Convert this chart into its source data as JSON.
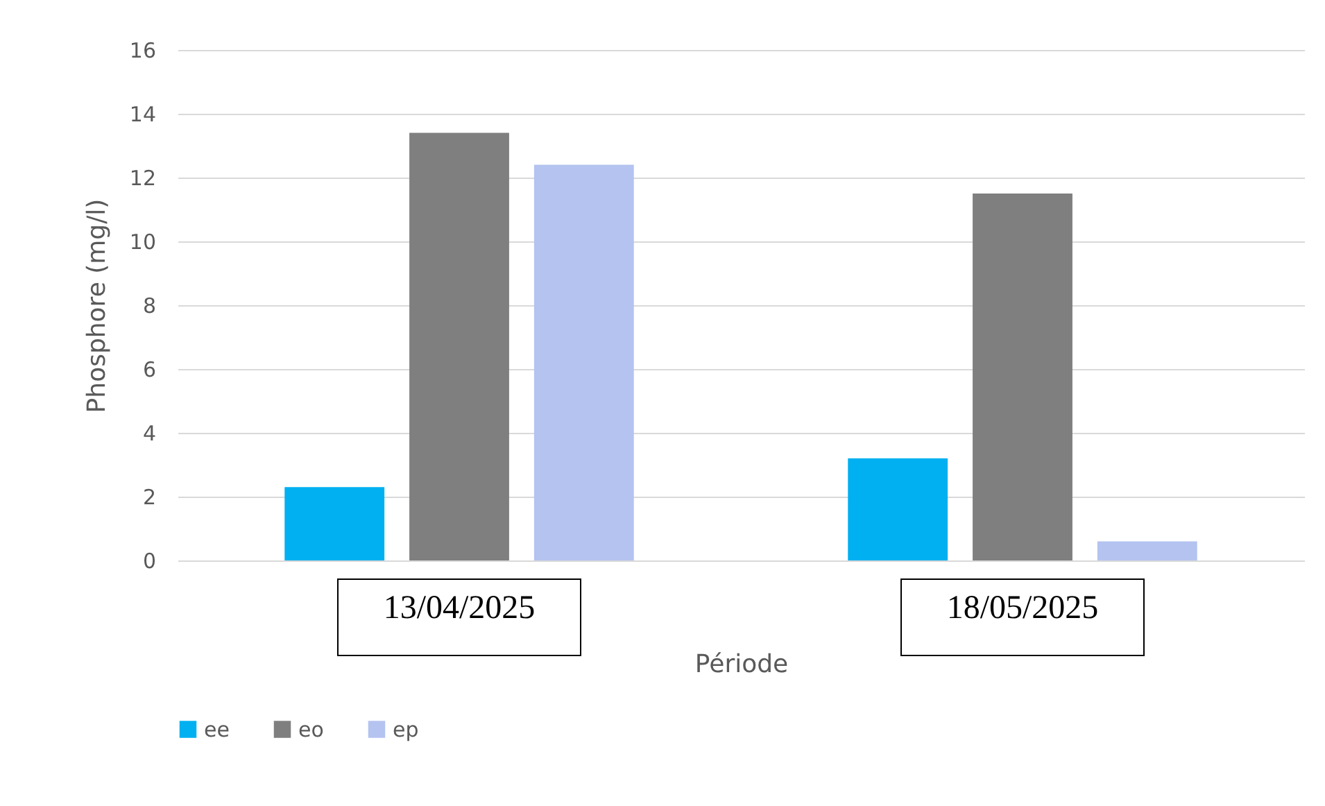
{
  "chart_data": {
    "type": "bar",
    "xlabel": "Période",
    "ylabel": "Phosphore (mg/l)",
    "categories": [
      "13/04/2025",
      "18/05/2025"
    ],
    "series": [
      {
        "name": "ee",
        "color": "#00b0f0",
        "values": [
          2.3,
          3.2
        ]
      },
      {
        "name": "eo",
        "color": "#7f7f7f",
        "values": [
          13.4,
          11.5
        ]
      },
      {
        "name": "ep",
        "color": "#b4c3f0",
        "values": [
          12.4,
          0.6
        ]
      }
    ],
    "ylim": [
      0,
      16
    ],
    "yticks": [
      0,
      2,
      4,
      6,
      8,
      10,
      12,
      14,
      16
    ],
    "grid": "y",
    "legend": "bottom"
  }
}
